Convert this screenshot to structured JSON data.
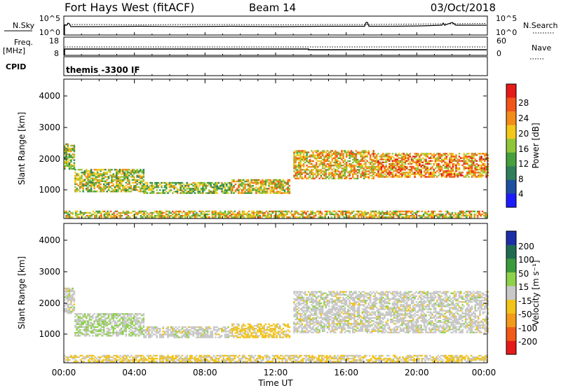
{
  "header": {
    "title": "Fort Hays West (fitACF)",
    "beam": "Beam 14",
    "date": "03/Oct/2018"
  },
  "noise_panel": {
    "left_label": "N.Sky",
    "left_ticks": [
      "10^5",
      "10^0"
    ],
    "right_label": "N.Search",
    "right_ticks": [
      "10^5",
      "10^0"
    ]
  },
  "freq_panel": {
    "left_label_1": "Freq.",
    "left_label_2": "[MHz]",
    "left_ticks": [
      "18",
      "8"
    ],
    "right_label": "Nave",
    "right_ticks": [
      "60",
      "0"
    ]
  },
  "cpid_panel": {
    "label": "CPID",
    "program": "themis -3300 IF"
  },
  "xaxis": {
    "label": "Time UT",
    "ticks": [
      "00:00",
      "04:00",
      "08:00",
      "12:00",
      "16:00",
      "20:00",
      "00:00"
    ]
  },
  "power_panel": {
    "ylabel": "Slant Range [km]",
    "yticks": [
      "4000",
      "3000",
      "2000",
      "1000"
    ],
    "colorbar_label": "Power [dB]",
    "colorbar_ticks": [
      "28",
      "24",
      "20",
      "16",
      "12",
      "8",
      "4"
    ]
  },
  "velocity_panel": {
    "ylabel": "Slant Range [km]",
    "yticks": [
      "4000",
      "3000",
      "2000",
      "1000"
    ],
    "colorbar_label": "Velocity [m s⁻¹]",
    "colorbar_ticks": [
      "200",
      "100",
      "50",
      "15",
      "-15",
      "-50",
      "-100",
      "-200"
    ]
  },
  "colors": {
    "power_scale": [
      "#1c1cff",
      "#1d4fa0",
      "#2f7f5a",
      "#46a03c",
      "#90c63a",
      "#f2c81a",
      "#f28c1a",
      "#f2541a",
      "#e61a1a"
    ],
    "velocity_scale": [
      "#1c2ea8",
      "#1f6b52",
      "#3b9a3b",
      "#8ed14a",
      "#c8c8c8",
      "#f2c41a",
      "#f29a1a",
      "#f25a1a",
      "#e61a1a"
    ]
  },
  "chart_data": [
    {
      "type": "line",
      "title": "N.Sky / N.Search",
      "x_range_hours": [
        0,
        24
      ],
      "ylim": [
        "10^0",
        "10^5"
      ],
      "scale": "log"
    },
    {
      "type": "line",
      "title": "Freq. [MHz] / Nave",
      "x_range_hours": [
        0,
        24
      ],
      "freq_mhz_approx": 10.5,
      "nave_approx": 20,
      "ylim_freq": [
        8,
        18
      ],
      "ylim_nave": [
        0,
        60
      ]
    },
    {
      "type": "heatmap",
      "title": "Power [dB]",
      "x_range_hours": [
        0,
        24
      ],
      "ylim_km": [
        180,
        4500
      ],
      "color_range": [
        0,
        30
      ],
      "echo_regions": [
        {
          "t_start": 0.0,
          "t_end": 0.6,
          "r_low": 1700,
          "r_high": 2500,
          "power": 14
        },
        {
          "t_start": 0.6,
          "t_end": 4.5,
          "r_low": 1000,
          "r_high": 1700,
          "power": 16
        },
        {
          "t_start": 4.5,
          "t_end": 9.5,
          "r_low": 950,
          "r_high": 1300,
          "power": 14
        },
        {
          "t_start": 9.5,
          "t_end": 12.8,
          "r_low": 950,
          "r_high": 1400,
          "power": 18
        },
        {
          "t_start": 13.0,
          "t_end": 17.5,
          "r_low": 1400,
          "r_high": 2300,
          "power": 20
        },
        {
          "t_start": 17.5,
          "t_end": 24.0,
          "r_low": 1450,
          "r_high": 2200,
          "power": 22
        },
        {
          "t_start": 0.0,
          "t_end": 24.0,
          "r_low": 200,
          "r_high": 420,
          "power": 18
        }
      ]
    },
    {
      "type": "heatmap",
      "title": "Velocity [m s⁻¹]",
      "x_range_hours": [
        0,
        24
      ],
      "ylim_km": [
        180,
        4500
      ],
      "color_range": [
        -200,
        200
      ],
      "echo_regions": [
        {
          "t_start": 0.0,
          "t_end": 0.6,
          "r_low": 1700,
          "r_high": 2500,
          "velocity": 0
        },
        {
          "t_start": 0.6,
          "t_end": 4.5,
          "r_low": 1000,
          "r_high": 1700,
          "velocity": 20
        },
        {
          "t_start": 4.5,
          "t_end": 9.5,
          "r_low": 950,
          "r_high": 1300,
          "velocity": 0
        },
        {
          "t_start": 9.5,
          "t_end": 12.8,
          "r_low": 950,
          "r_high": 1400,
          "velocity": -40
        },
        {
          "t_start": 13.0,
          "t_end": 24.0,
          "r_low": 1100,
          "r_high": 2400,
          "velocity": 0
        },
        {
          "t_start": 0.0,
          "t_end": 24.0,
          "r_low": 200,
          "r_high": 420,
          "velocity": -30
        }
      ]
    }
  ]
}
